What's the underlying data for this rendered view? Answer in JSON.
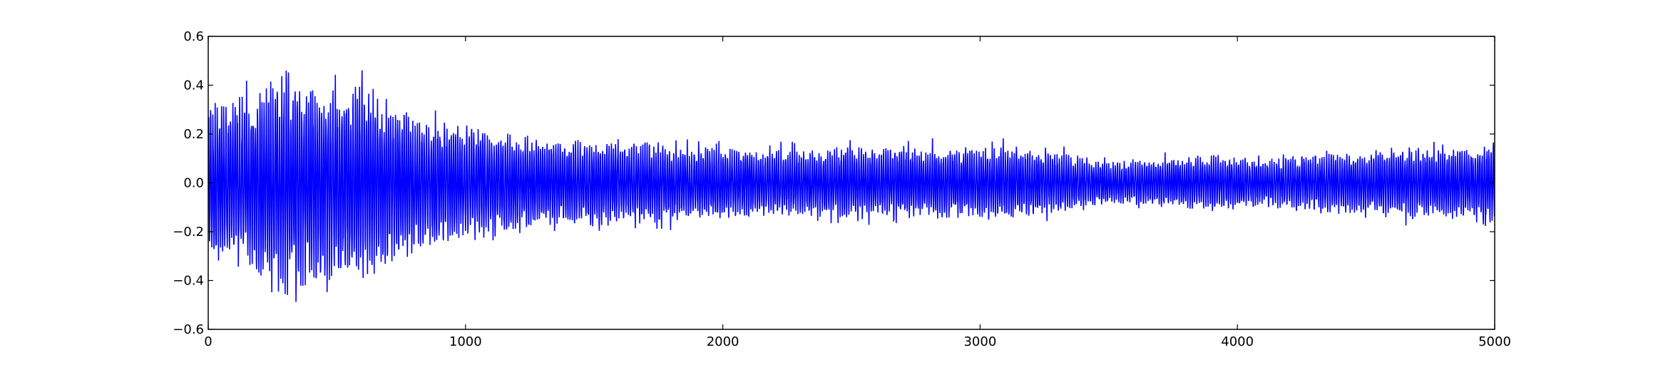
{
  "chart_data": {
    "type": "line",
    "title": "",
    "xlabel": "",
    "ylabel": "",
    "xlim": [
      0,
      5000
    ],
    "ylim": [
      -0.6,
      0.6
    ],
    "x_ticks": [
      0,
      1000,
      2000,
      3000,
      4000,
      5000
    ],
    "x_tick_labels": [
      "0",
      "1000",
      "2000",
      "3000",
      "4000",
      "5000"
    ],
    "y_ticks": [
      -0.6,
      -0.4,
      -0.2,
      0.0,
      0.2,
      0.4,
      0.6
    ],
    "y_tick_labels": [
      "−0.6",
      "−0.4",
      "−0.2",
      "0.0",
      "0.2",
      "0.4",
      "0.6"
    ],
    "grid": false,
    "legend": "none",
    "line_color": "#0000ff",
    "n_samples": 5000,
    "envelope_description": "oscillating signal, large amplitude (~0.4-0.5) in first ~800 samples, decaying to ~0.15-0.2 afterwards",
    "envelope": [
      {
        "x": 0,
        "amp": 0.33
      },
      {
        "x": 100,
        "amp": 0.36
      },
      {
        "x": 200,
        "amp": 0.38
      },
      {
        "x": 300,
        "amp": 0.48
      },
      {
        "x": 400,
        "amp": 0.42
      },
      {
        "x": 500,
        "amp": 0.4
      },
      {
        "x": 600,
        "amp": 0.42
      },
      {
        "x": 700,
        "amp": 0.35
      },
      {
        "x": 800,
        "amp": 0.29
      },
      {
        "x": 900,
        "amp": 0.27
      },
      {
        "x": 1000,
        "amp": 0.25
      },
      {
        "x": 1100,
        "amp": 0.23
      },
      {
        "x": 1200,
        "amp": 0.21
      },
      {
        "x": 1300,
        "amp": 0.18
      },
      {
        "x": 1400,
        "amp": 0.17
      },
      {
        "x": 1500,
        "amp": 0.19
      },
      {
        "x": 1600,
        "amp": 0.17
      },
      {
        "x": 1700,
        "amp": 0.18
      },
      {
        "x": 1800,
        "amp": 0.16
      },
      {
        "x": 1900,
        "amp": 0.15
      },
      {
        "x": 2000,
        "amp": 0.16
      },
      {
        "x": 2200,
        "amp": 0.14
      },
      {
        "x": 2400,
        "amp": 0.14
      },
      {
        "x": 2500,
        "amp": 0.16
      },
      {
        "x": 2700,
        "amp": 0.15
      },
      {
        "x": 2900,
        "amp": 0.15
      },
      {
        "x": 3100,
        "amp": 0.15
      },
      {
        "x": 3300,
        "amp": 0.13
      },
      {
        "x": 3500,
        "amp": 0.09
      },
      {
        "x": 3700,
        "amp": 0.1
      },
      {
        "x": 3900,
        "amp": 0.12
      },
      {
        "x": 4100,
        "amp": 0.1
      },
      {
        "x": 4300,
        "amp": 0.12
      },
      {
        "x": 4500,
        "amp": 0.14
      },
      {
        "x": 4700,
        "amp": 0.15
      },
      {
        "x": 4900,
        "amp": 0.15
      },
      {
        "x": 5000,
        "amp": 0.17
      }
    ]
  }
}
